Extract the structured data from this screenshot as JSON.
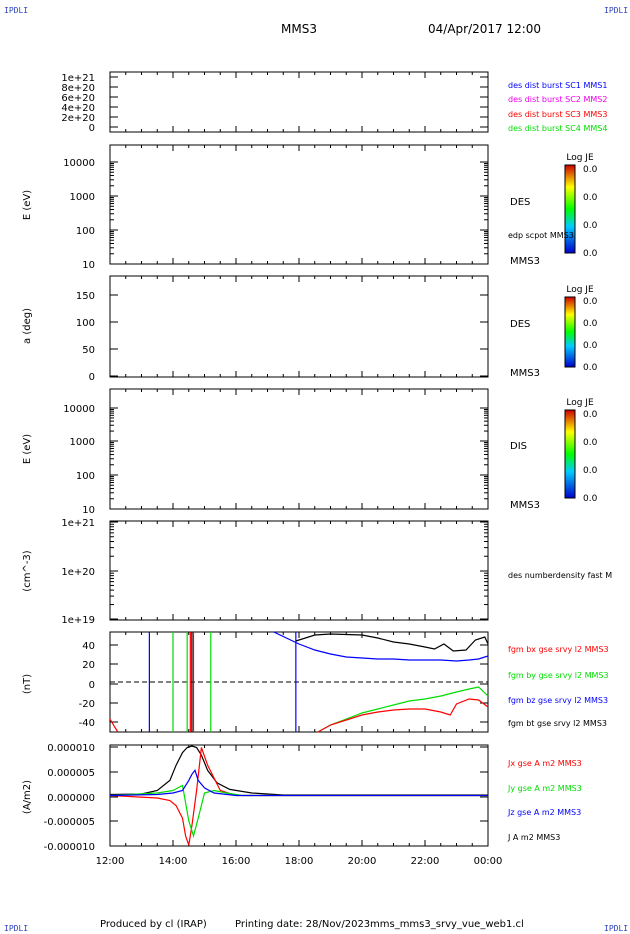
{
  "corner_labels": [
    "IPDLI",
    "IPDLI",
    "IPDLI",
    "IPDLI"
  ],
  "header": {
    "spacecraft": "MMS3",
    "datetime": "04/Apr/2017 12:00"
  },
  "footer": {
    "producer": "Produced by cl (IRAP)",
    "printing_date": "Printing date: 28/Nov/2023",
    "file": "mms_mms3_srvy_vue_web1.cl"
  },
  "colors": {
    "blue": "#0000ff",
    "magenta": "#ee00ee",
    "red": "#ff0000",
    "green": "#00dd00",
    "black": "#000000"
  },
  "chart_data": [
    {
      "type": "line",
      "ylabel": "",
      "yticks": [
        "1e+21",
        "8e+20",
        "6e+20",
        "4e+20",
        "2e+20",
        "0"
      ],
      "ylim": [
        0,
        1.05e+21
      ],
      "dashed_zero": true,
      "legend": [
        {
          "label": "des dist burst SC1 MMS1",
          "color": "#0000ff"
        },
        {
          "label": "des dist burst SC2 MMS2",
          "color": "#ee00ee"
        },
        {
          "label": "des dist burst SC3 MMS3",
          "color": "#ff0000"
        },
        {
          "label": "des dist burst SC4 MMS4",
          "color": "#00dd00"
        }
      ],
      "series": []
    },
    {
      "type": "heatmap",
      "ylabel": "E (eV)",
      "scale": "log",
      "yticks": [
        "10000",
        "1000",
        "100",
        "10"
      ],
      "ylim": [
        10,
        15000
      ],
      "side_labels": [
        "DES",
        "edp scpot MMS3",
        "MMS3"
      ],
      "colorbar": {
        "title": "Log JE",
        "ticks": [
          "0.0",
          "0.0",
          "0.0",
          "0.0"
        ]
      },
      "series": []
    },
    {
      "type": "heatmap",
      "ylabel": "a (deg)",
      "yticks": [
        "150",
        "100",
        "50",
        "0"
      ],
      "ylim": [
        0,
        180
      ],
      "side_labels": [
        "DES",
        "MMS3"
      ],
      "colorbar": {
        "title": "Log JE",
        "ticks": [
          "0.0",
          "0.0",
          "0.0",
          "0.0"
        ]
      },
      "series": []
    },
    {
      "type": "heatmap",
      "ylabel": "E (eV)",
      "scale": "log",
      "yticks": [
        "10000",
        "1000",
        "100",
        "10"
      ],
      "ylim": [
        10,
        15000
      ],
      "side_labels": [
        "DIS",
        "MMS3"
      ],
      "colorbar": {
        "title": "Log JE",
        "ticks": [
          "0.0",
          "0.0",
          "0.0",
          "0.0"
        ]
      },
      "series": []
    },
    {
      "type": "line",
      "ylabel": "(cm^-3)",
      "scale": "log",
      "yticks": [
        "1e+21",
        "1e+20",
        "1e+19"
      ],
      "ylim": [
        1e+19,
        1e+21
      ],
      "legend": [
        {
          "label": "des numberdensity fast M",
          "color": "#000000"
        }
      ],
      "series": []
    },
    {
      "type": "line",
      "ylabel": "(nT)",
      "yticks": [
        "40",
        "20",
        "0",
        "-20",
        "-40"
      ],
      "ylim": [
        -50,
        50
      ],
      "dashed_zero": true,
      "legend": [
        {
          "label": "fgm bx gse srvy l2 MMS3",
          "color": "#ff0000"
        },
        {
          "label": "fgm by gse srvy l2 MMS3",
          "color": "#00dd00"
        },
        {
          "label": "fgm bz gse srvy l2 MMS3",
          "color": "#0000ff"
        },
        {
          "label": "fgm bt gse srvy l2 MMS3",
          "color": "#000000"
        }
      ],
      "spikes": [
        {
          "x": 13.25,
          "color": "#0000ff"
        },
        {
          "x": 14.0,
          "color": "#00dd00"
        },
        {
          "x": 14.45,
          "color": "#00dd00"
        },
        {
          "x": 14.55,
          "color": "#ff0000"
        },
        {
          "x": 14.6,
          "color": "#000000"
        },
        {
          "x": 14.65,
          "color": "#ff0000"
        },
        {
          "x": 15.2,
          "color": "#00dd00"
        },
        {
          "x": 17.9,
          "color": "#0000ff"
        }
      ],
      "series": [
        {
          "color": "#000000",
          "x": [
            17.9,
            18.5,
            19.0,
            20.0,
            20.5,
            21.0,
            21.5,
            22.0,
            22.3,
            22.6,
            22.9,
            23.3,
            23.6,
            23.9,
            24.0
          ],
          "y": [
            41,
            47,
            48,
            47,
            44,
            40,
            38,
            35,
            33,
            38,
            31,
            32,
            42,
            45,
            38
          ]
        },
        {
          "color": "#0000ff",
          "x": [
            17.2,
            17.6,
            18.0,
            18.5,
            19.0,
            19.5,
            20.0,
            20.5,
            21.0,
            21.5,
            22.0,
            22.5,
            23.0,
            23.4,
            23.7,
            24.0
          ],
          "y": [
            50,
            44,
            38,
            32,
            28,
            25,
            24,
            23,
            23,
            22,
            22,
            22,
            21,
            22,
            23,
            26
          ]
        },
        {
          "color": "#00dd00",
          "x": [
            18.6,
            19.0,
            19.5,
            20.0,
            20.5,
            21.0,
            21.5,
            22.0,
            22.5,
            23.0,
            23.4,
            23.7,
            24.0
          ],
          "y": [
            -50,
            -43,
            -37,
            -31,
            -27,
            -23,
            -19,
            -17,
            -14,
            -10,
            -7,
            -5,
            -14
          ]
        },
        {
          "color": "#ff0000",
          "x": [
            18.6,
            19.0,
            19.5,
            20.0,
            20.5,
            21.0,
            21.5,
            22.0,
            22.5,
            22.8,
            23.0,
            23.4,
            23.7,
            24.0
          ],
          "y": [
            -50,
            -43,
            -38,
            -33,
            -30,
            -28,
            -27,
            -27,
            -30,
            -33,
            -22,
            -17,
            -18,
            -25
          ]
        },
        {
          "color": "#ff0000",
          "x": [
            12.0,
            12.15,
            12.25
          ],
          "y": [
            -37,
            -45,
            -50
          ]
        }
      ]
    },
    {
      "type": "line",
      "ylabel": "(A/m2)",
      "yticks": [
        "0.000010",
        "0.000005",
        "0.000000",
        "-0.000005",
        "-0.000010"
      ],
      "ylim": [
        -1e-05,
        1e-05
      ],
      "xticks": [
        "12:00",
        "14:00",
        "16:00",
        "18:00",
        "20:00",
        "22:00",
        "00:00"
      ],
      "xlim": [
        12,
        24
      ],
      "legend": [
        {
          "label": "Jx gse A m2 MMS3",
          "color": "#ff0000"
        },
        {
          "label": "Jy gse A m2 MMS3",
          "color": "#00dd00"
        },
        {
          "label": "Jz gse A m2 MMS3",
          "color": "#0000ff"
        },
        {
          "label": "J A m2 MMS3",
          "color": "#000000"
        }
      ],
      "series": [
        {
          "color": "#000000",
          "x": [
            12.0,
            13.0,
            13.5,
            13.9,
            14.1,
            14.3,
            14.45,
            14.6,
            14.75,
            14.9,
            15.1,
            15.4,
            15.8,
            16.5,
            17.5,
            24.0
          ],
          "y": [
            2e-07,
            3e-07,
            1e-06,
            3e-06,
            6e-06,
            8.5e-06,
            9.5e-06,
            9.8e-06,
            9.5e-06,
            8e-06,
            5e-06,
            2.5e-06,
            1.2e-06,
            5e-07,
            1e-07,
            1e-07
          ]
        },
        {
          "color": "#ff0000",
          "x": [
            12.0,
            13.5,
            13.9,
            14.1,
            14.3,
            14.4,
            14.5,
            14.6,
            14.75,
            14.9,
            15.1,
            15.5,
            16.0,
            24.0
          ],
          "y": [
            0,
            -5e-07,
            -1e-06,
            -2e-06,
            -4.5e-06,
            -8e-06,
            -9.8e-06,
            -6e-06,
            1e-06,
            9.5e-06,
            6e-06,
            1e-06,
            0,
            0
          ]
        },
        {
          "color": "#00dd00",
          "x": [
            12.0,
            13.5,
            14.0,
            14.3,
            14.5,
            14.65,
            14.8,
            15.0,
            15.3,
            15.7,
            16.2,
            24.0
          ],
          "y": [
            0,
            5e-07,
            1e-06,
            2e-06,
            -5e-06,
            -8e-06,
            -4.5e-06,
            5e-07,
            1e-06,
            5e-07,
            0,
            0
          ]
        },
        {
          "color": "#0000ff",
          "x": [
            12.0,
            13.5,
            14.0,
            14.3,
            14.5,
            14.6,
            14.7,
            14.8,
            15.0,
            15.3,
            16.0,
            24.0
          ],
          "y": [
            0,
            2e-07,
            5e-07,
            1e-06,
            3e-06,
            4.2e-06,
            5e-06,
            3e-06,
            1.5e-06,
            5e-07,
            0,
            0
          ]
        }
      ]
    }
  ]
}
